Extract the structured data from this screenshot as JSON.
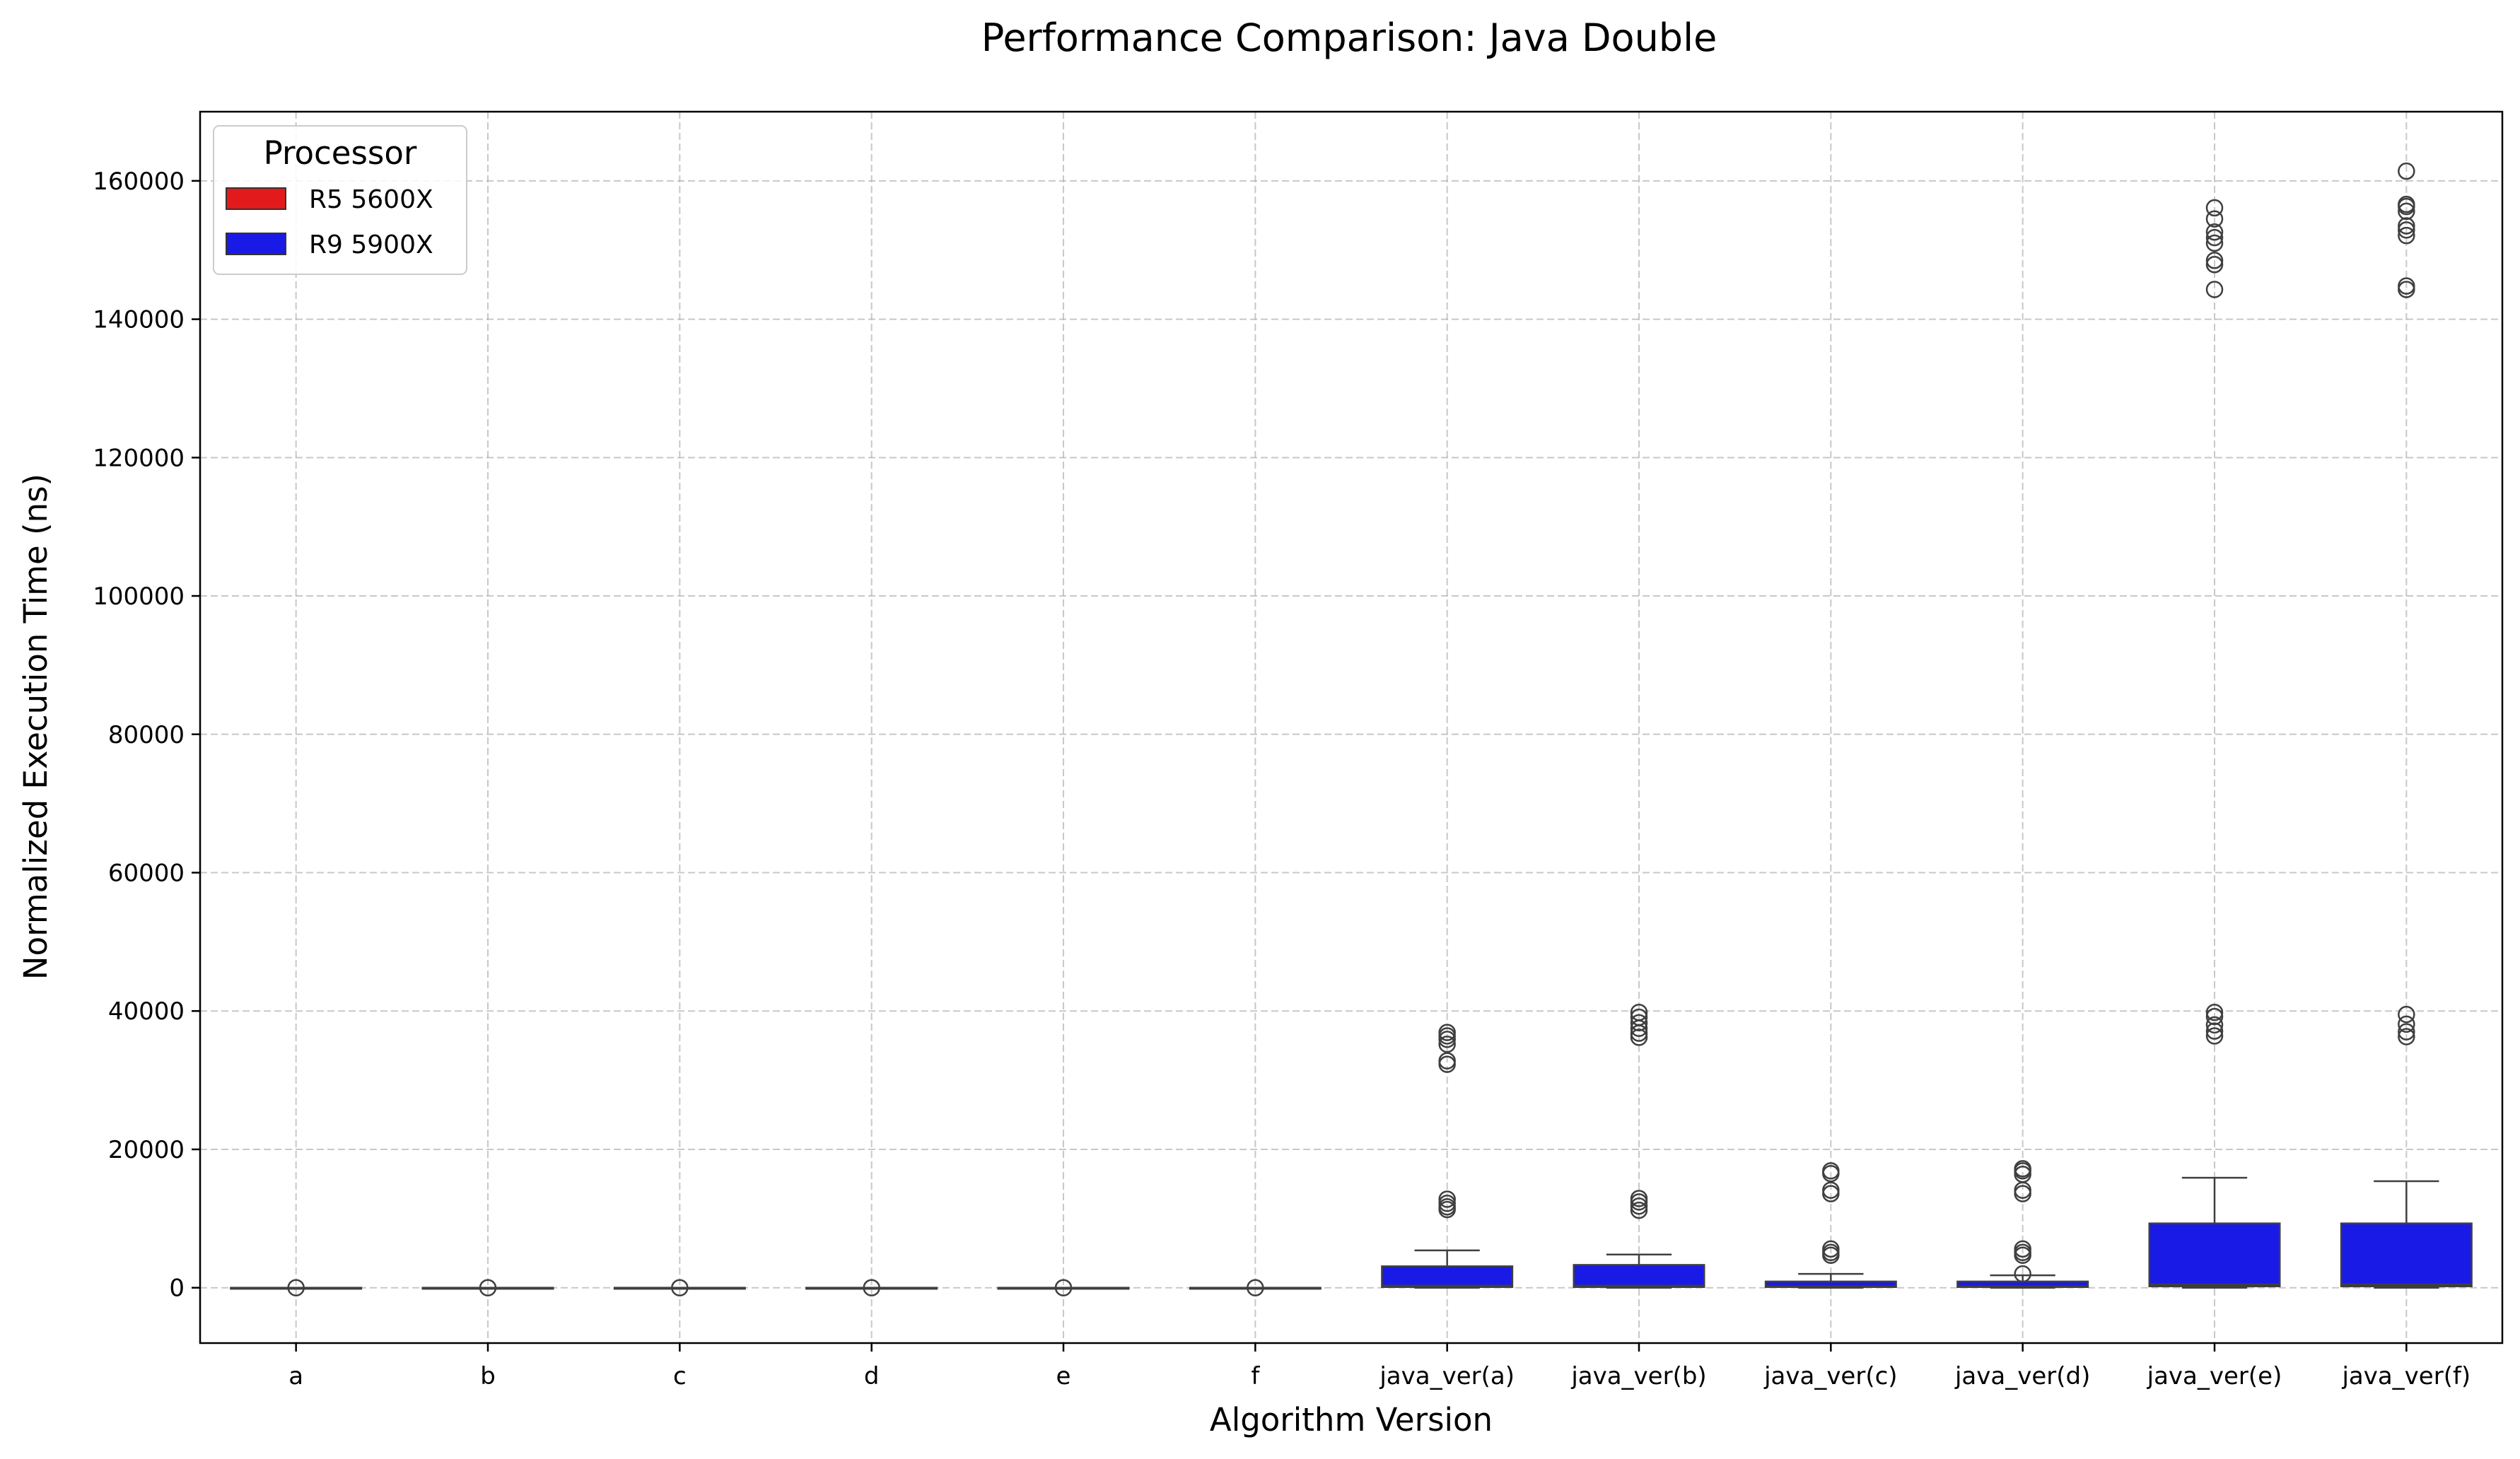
{
  "chart_data": {
    "type": "box",
    "title": "Performance Comparison: Java Double",
    "xlabel": "Algorithm Version",
    "ylabel": "Normalized Execution Time (ns)",
    "ylim": [
      -8000,
      170000
    ],
    "yticks": [
      0,
      20000,
      40000,
      60000,
      80000,
      100000,
      120000,
      140000,
      160000
    ],
    "ytick_labels": [
      "0",
      "20000",
      "40000",
      "60000",
      "80000",
      "100000",
      "120000",
      "140000",
      "160000"
    ],
    "grid": true,
    "legend": {
      "title": "Processor",
      "placement": "top-left",
      "entries": [
        {
          "label": "R5 5600X",
          "color": "#e31a1c"
        },
        {
          "label": "R9 5900X",
          "color": "#1a1ae6"
        }
      ]
    },
    "categories": [
      "a",
      "b",
      "c",
      "d",
      "e",
      "f",
      "java_ver(a)",
      "java_ver(b)",
      "java_ver(c)",
      "java_ver(d)",
      "java_ver(e)",
      "java_ver(f)"
    ],
    "boxes": [
      {
        "category": "a",
        "series": "R9 5900X",
        "whisker_low": 0,
        "q1": 0,
        "median": 0,
        "q3": 0,
        "whisker_high": 0,
        "outliers": [
          0
        ]
      },
      {
        "category": "b",
        "series": "R9 5900X",
        "whisker_low": 0,
        "q1": 0,
        "median": 0,
        "q3": 0,
        "whisker_high": 0,
        "outliers": [
          0
        ]
      },
      {
        "category": "c",
        "series": "R9 5900X",
        "whisker_low": 0,
        "q1": 0,
        "median": 0,
        "q3": 0,
        "whisker_high": 0,
        "outliers": [
          0
        ]
      },
      {
        "category": "d",
        "series": "R9 5900X",
        "whisker_low": 0,
        "q1": 0,
        "median": 0,
        "q3": 0,
        "whisker_high": 0,
        "outliers": [
          0
        ]
      },
      {
        "category": "e",
        "series": "R9 5900X",
        "whisker_low": 0,
        "q1": 0,
        "median": 0,
        "q3": 0,
        "whisker_high": 0,
        "outliers": [
          0
        ]
      },
      {
        "category": "f",
        "series": "R9 5900X",
        "whisker_low": 0,
        "q1": 0,
        "median": 0,
        "q3": 0,
        "whisker_high": 0,
        "outliers": [
          0
        ]
      },
      {
        "category": "java_ver(a)",
        "series": "R9 5900X",
        "whisker_low": 0,
        "q1": 100,
        "median": 300,
        "q3": 3100,
        "whisker_high": 5400,
        "outliers": [
          11300,
          11700,
          12200,
          12800,
          32300,
          32800,
          35200,
          35900,
          36400,
          36900
        ]
      },
      {
        "category": "java_ver(b)",
        "series": "R9 5900X",
        "whisker_low": 0,
        "q1": 100,
        "median": 300,
        "q3": 3300,
        "whisker_high": 4800,
        "outliers": [
          11200,
          11800,
          12400,
          12900,
          36200,
          36800,
          37500,
          38300,
          39100,
          39800
        ]
      },
      {
        "category": "java_ver(c)",
        "series": "R9 5900X",
        "whisker_low": 0,
        "q1": 100,
        "median": 200,
        "q3": 900,
        "whisker_high": 2000,
        "outliers": [
          4700,
          5100,
          5600,
          13600,
          14100,
          16500,
          16900
        ]
      },
      {
        "category": "java_ver(d)",
        "series": "R9 5900X",
        "whisker_low": 0,
        "q1": 100,
        "median": 200,
        "q3": 900,
        "whisker_high": 1800,
        "outliers": [
          2000,
          4700,
          5100,
          5600,
          13600,
          14100,
          16400,
          16900,
          17200
        ]
      },
      {
        "category": "java_ver(e)",
        "series": "R9 5900X",
        "whisker_low": 0,
        "q1": 200,
        "median": 500,
        "q3": 9300,
        "whisker_high": 15900,
        "outliers": [
          36400,
          37100,
          38000,
          39200,
          39800,
          144300,
          147900,
          148500,
          151000,
          151800,
          152600,
          154500,
          156100
        ]
      },
      {
        "category": "java_ver(f)",
        "series": "R9 5900X",
        "whisker_low": 0,
        "q1": 200,
        "median": 500,
        "q3": 9300,
        "whisker_high": 15400,
        "outliers": [
          36300,
          37000,
          38100,
          39500,
          144300,
          144800,
          152100,
          152900,
          153500,
          155600,
          156300,
          156600,
          161400
        ]
      }
    ]
  }
}
